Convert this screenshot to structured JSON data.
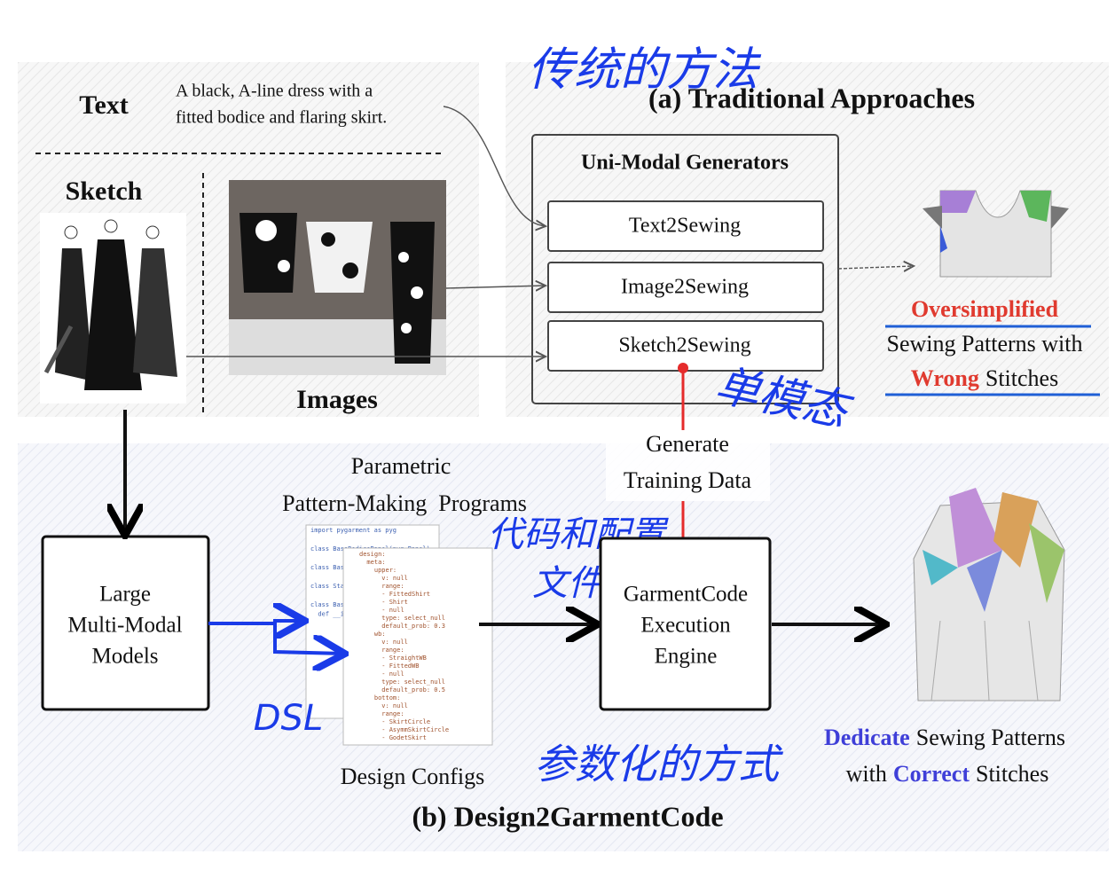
{
  "inputs": {
    "text_label": "Text",
    "text_prompt": [
      "A black, A-line dress with a",
      "fitted bodice and flaring skirt."
    ],
    "sketch_label": "Sketch",
    "images_label": "Images"
  },
  "traditional": {
    "handwritten_note": "传统的方法",
    "title": "(a) Traditional Approaches",
    "panel_title": "Uni-Modal Generators",
    "generators": [
      "Text2Sewing",
      "Image2Sewing",
      "Sketch2Sewing"
    ],
    "unimodal_note": "单模态",
    "result": {
      "line1": "Oversimplified",
      "line2": "Sewing Patterns with",
      "line3_highlight": "Wrong",
      "line3_rest": "Stitches"
    }
  },
  "training_link": [
    "Generate",
    "Training Data"
  ],
  "design2garmentcode": {
    "title": "(b) Design2GarmentCode",
    "model": [
      "Large",
      "Multi-Modal",
      "Models"
    ],
    "programs_label": [
      "Parametric",
      "Pattern-Making  Programs"
    ],
    "configs_label": "Design Configs",
    "dsl_note": "DSL",
    "config_note": [
      "代码和配置",
      "文件"
    ],
    "param_note": "参数化的方式",
    "engine": [
      "GarmentCode",
      "Execution",
      "Engine"
    ],
    "program_code": [
      "import pygarment as pyg",
      "",
      "class BaseBodicePanel(pyg.Panel):",
      "",
      "class BaseBo",
      "",
      "class Stack",
      "",
      "class BaseBo",
      "  def __i"
    ],
    "config_code": [
      "design:",
      "  meta:",
      "    upper:",
      "      v: null",
      "      range:",
      "      - FittedShirt",
      "      - Shirt",
      "      - null",
      "      type: select_null",
      "      default_prob: 0.3",
      "    wb:",
      "      v: null",
      "      range:",
      "      - StraightWB",
      "      - FittedWB",
      "      - null",
      "      type: select_null",
      "      default_prob: 0.5",
      "    bottom:",
      "      v: null",
      "      range:",
      "      - SkirtCircle",
      "      - AsymmSkirtCircle",
      "      - GodetSkirt"
    ],
    "result": {
      "line1_highlight": "Dedicate",
      "line1_rest": "Sewing Patterns",
      "line2_lead": "with",
      "line2_highlight": "Correct",
      "line2_rest": "Stitches"
    }
  }
}
